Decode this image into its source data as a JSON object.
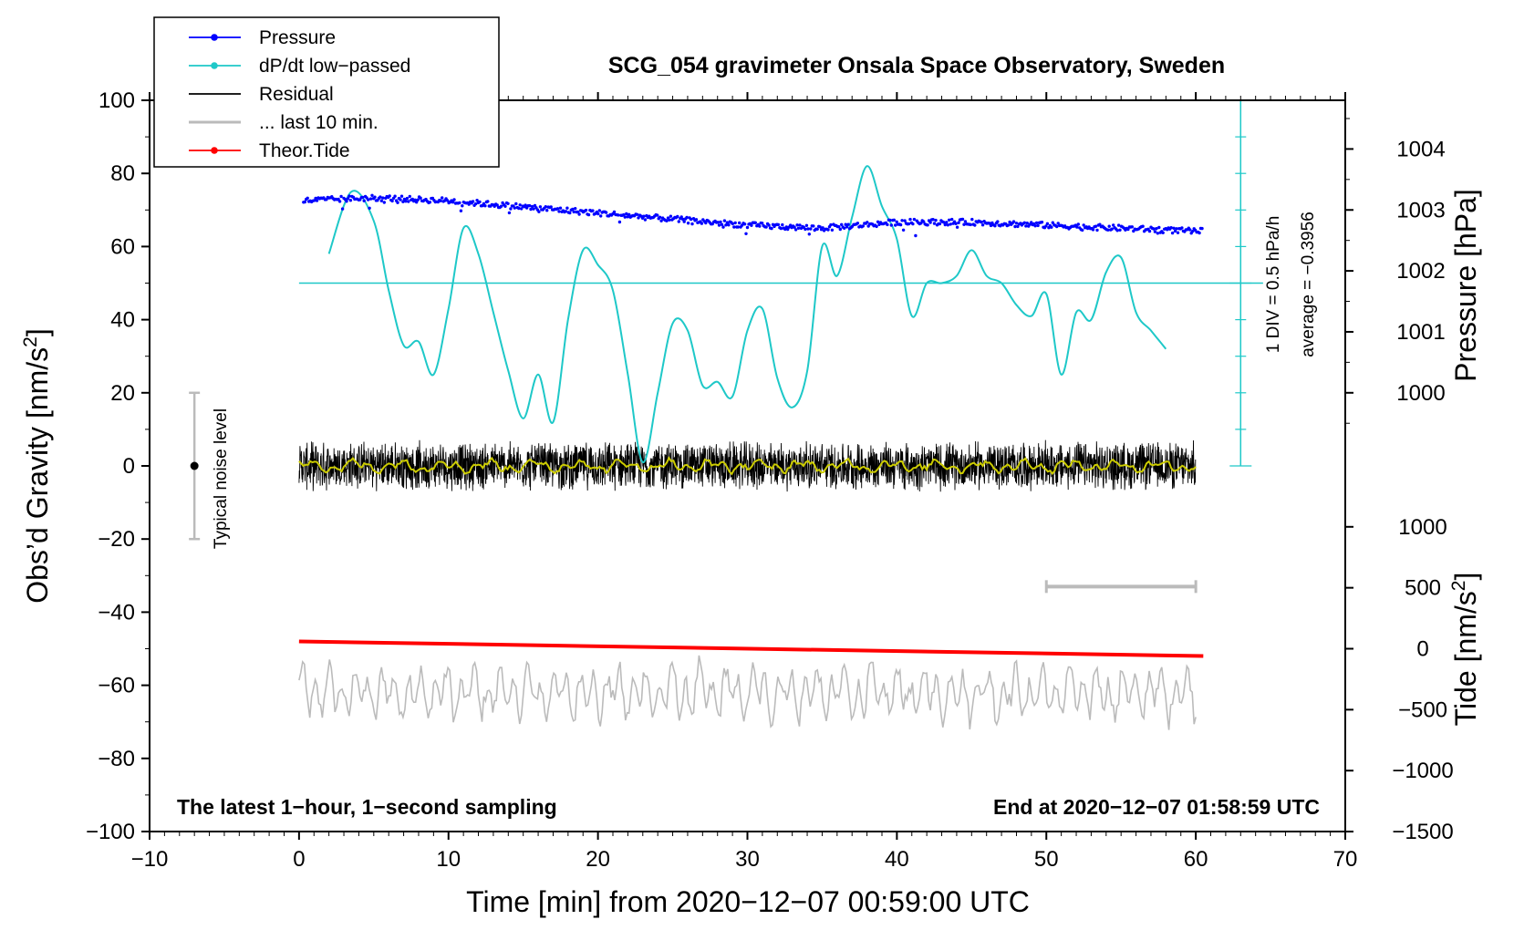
{
  "chart_data": {
    "type": "line",
    "title": "SCG_054 gravimeter Onsala Space Observatory, Sweden",
    "xlabel": "Time [min] from 2020−12−07 00:59:00 UTC",
    "ylabel_left_main": "Obs’d Gravity [nm/s",
    "ylabel_left_sup": "2",
    "ylabel_left_end": "]",
    "ylabel_right_pressure": "Pressure [hPa]",
    "ylabel_right_tide_main": "Tide [nm/s",
    "ylabel_right_tide_sup": "2",
    "ylabel_right_tide_end": "]",
    "xlim": [
      -10,
      70
    ],
    "ylim": [
      -100,
      100
    ],
    "x_ticks": [
      -10,
      0,
      10,
      20,
      30,
      40,
      50,
      60,
      70
    ],
    "x_tick_labels": [
      "−10",
      "0",
      "10",
      "20",
      "30",
      "40",
      "50",
      "60",
      "70"
    ],
    "y_ticks": [
      -100,
      -80,
      -60,
      -40,
      -20,
      0,
      20,
      40,
      60,
      80,
      100
    ],
    "y_tick_labels": [
      "−100",
      "−80",
      "−60",
      "−40",
      "−20",
      "0",
      "20",
      "40",
      "60",
      "80",
      "100"
    ],
    "pressure_axis": {
      "ticks": [
        1000,
        1001,
        1002,
        1003,
        1004
      ],
      "tick_labels": [
        "1000",
        "1001",
        "1002",
        "1003",
        "1004"
      ],
      "gravity_at_1000": 20,
      "gravity_per_hPa": 16.67
    },
    "tide_axis": {
      "ticks": [
        -1500,
        -1000,
        -500,
        0,
        500,
        1000
      ],
      "tick_labels": [
        "−1500",
        "−1000",
        "−500",
        "0",
        "500",
        "1000"
      ],
      "gravity_at_0": -50,
      "gravity_per_500": 16.67
    },
    "legend": {
      "position": "top-left",
      "entries": [
        {
          "label": "Pressure",
          "color": "#0000ff",
          "marker": "dot"
        },
        {
          "label": "dP/dt low−passed",
          "color": "#1ec8c8",
          "marker": "dot"
        },
        {
          "label": "Residual",
          "color": "#000000",
          "marker": "none"
        },
        {
          "label": "... last 10 min.",
          "color": "#bbbbbb",
          "marker": "none"
        },
        {
          "label": "Theor.Tide",
          "color": "#ff0000",
          "marker": "dot"
        }
      ]
    },
    "series": [
      {
        "name": "Pressure",
        "color": "#0000ff",
        "axis": "pressure_hPa",
        "x": [
          0,
          5,
          10,
          15,
          20,
          25,
          30,
          35,
          40,
          45,
          50,
          55,
          60
        ],
        "values": [
          1003.15,
          1003.2,
          1003.15,
          1003.05,
          1002.95,
          1002.85,
          1002.75,
          1002.7,
          1002.8,
          1002.8,
          1002.75,
          1002.7,
          1002.65
        ]
      },
      {
        "name": "dP/dt low−passed",
        "color": "#1ec8c8",
        "axis": "gravity",
        "x": [
          2,
          3.5,
          5,
          6,
          7,
          8,
          9,
          10,
          11,
          12,
          13,
          14,
          15,
          16,
          17,
          18,
          19,
          20,
          21,
          22,
          23,
          24,
          25,
          26,
          27,
          28,
          29,
          30,
          31,
          32,
          33,
          34,
          35,
          36,
          37,
          38,
          39,
          40,
          41,
          42,
          43,
          44,
          45,
          46,
          47,
          48,
          49,
          50,
          51,
          52,
          53,
          54,
          55,
          56,
          57,
          58
        ],
        "values": [
          58,
          75,
          67,
          48,
          33,
          34,
          25,
          43,
          65,
          58,
          42,
          26,
          13,
          25,
          12,
          40,
          59,
          55,
          48,
          25,
          1,
          20,
          39,
          37,
          22,
          23,
          19,
          37,
          43,
          24,
          16,
          26,
          60,
          52,
          68,
          82,
          71,
          62,
          41,
          50,
          50,
          52,
          59,
          52,
          50,
          44,
          41,
          47,
          25,
          42,
          40,
          53,
          57,
          42,
          37,
          32
        ]
      },
      {
        "name": "Residual",
        "color": "#000000",
        "axis": "gravity",
        "x_range": [
          0,
          60
        ],
        "center": 0,
        "amplitude": 6
      },
      {
        "name": "Residual smoothed",
        "color": "#cccc00",
        "axis": "gravity",
        "x_range": [
          0,
          60
        ],
        "center": 0,
        "amplitude": 2
      },
      {
        "name": "... last 10 min.",
        "color": "#bbbbbb",
        "axis": "gravity",
        "x_range": [
          0,
          60
        ],
        "center": -62,
        "amplitude": 6
      },
      {
        "name": "Theor.Tide",
        "color": "#ff0000",
        "axis": "gravity",
        "x": [
          0,
          60.5
        ],
        "values": [
          -48,
          -52
        ]
      }
    ],
    "dpdt_scale": {
      "label_div": "1 DIV = 0.5 hPa/h",
      "label_avg": "average = −0.3956",
      "zero_level": 50,
      "x_position": 63,
      "y_range": [
        0,
        100
      ]
    },
    "noise_bar": {
      "label": "Typical noise level",
      "x": -7,
      "y_range": [
        -20,
        20
      ]
    },
    "span_bar": {
      "x_range": [
        50,
        60
      ],
      "y": -33
    },
    "footer_left": "The latest 1−hour, 1−second sampling",
    "footer_right": "End at 2020−12−07 01:58:59 UTC"
  }
}
